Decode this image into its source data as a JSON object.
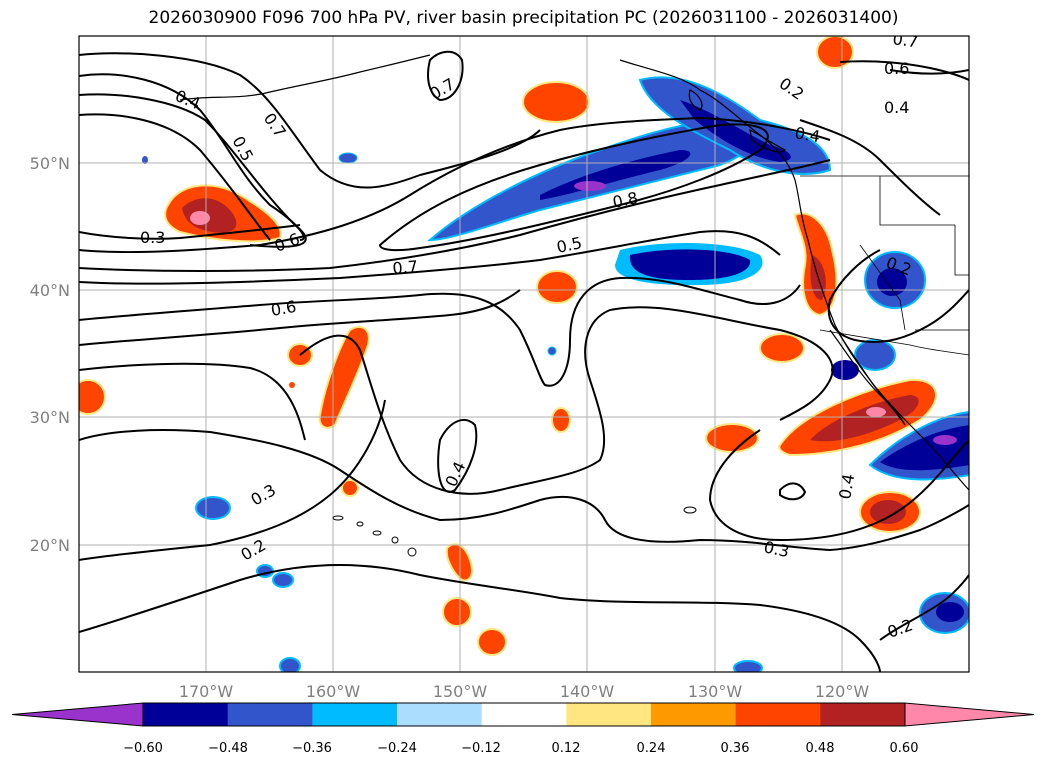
{
  "title": "2026030900 F096 700 hPa PV, river basin precipitation PC (2026031100 - 2026031400)",
  "lon_ticks": [
    "170°W",
    "160°W",
    "150°W",
    "140°W",
    "130°W",
    "120°W"
  ],
  "lat_ticks": [
    "50°N",
    "40°N",
    "30°N",
    "20°N"
  ],
  "contour_labels": [
    "0.7",
    "0.6",
    "0.4",
    "0.2",
    "0.4",
    "0.7",
    "0.7",
    "0.5",
    "0.3",
    "0.6",
    "0.8",
    "0.4",
    "0.5",
    "0.7",
    "0.2",
    "0.6",
    "0.4",
    "0.4",
    "0.3",
    "0.2",
    "0.3",
    "0.2"
  ],
  "colorbar": {
    "tick_labels": [
      "−0.60",
      "−0.48",
      "−0.36",
      "−0.24",
      "−0.12",
      "0.12",
      "0.24",
      "0.36",
      "0.48",
      "0.60"
    ],
    "colors": [
      "#9933cc",
      "#000099",
      "#3355cc",
      "#00bbff",
      "#aaddff",
      "#ffffff",
      "#ffe680",
      "#ff9900",
      "#ff4400",
      "#b22222",
      "#ff88aa"
    ]
  }
}
